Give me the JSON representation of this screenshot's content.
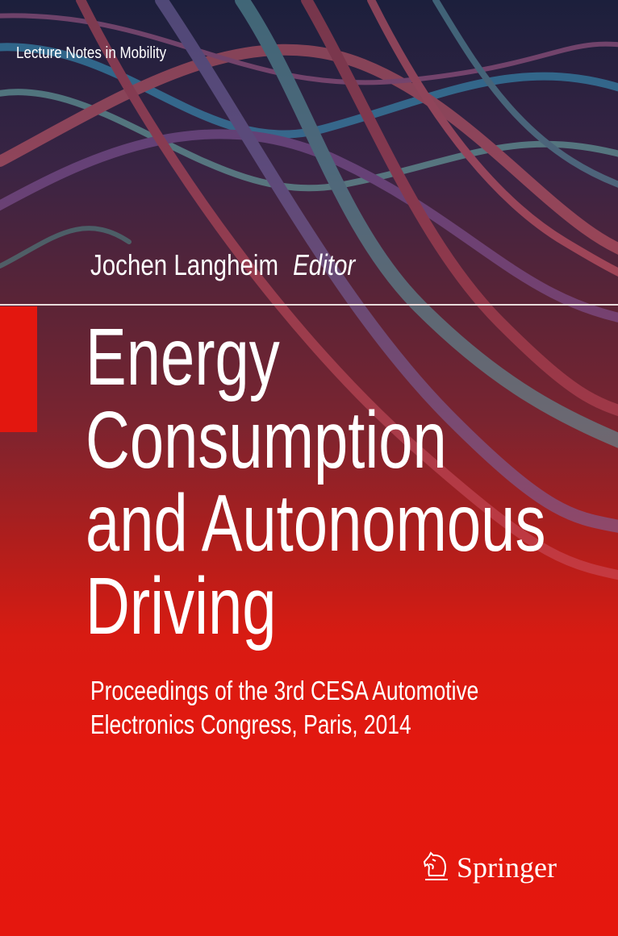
{
  "series": "Lecture Notes in Mobility",
  "author": {
    "name": "Jochen Langheim",
    "role": "Editor"
  },
  "title_lines": [
    "Energy",
    "Consumption",
    "and Autonomous",
    "Driving"
  ],
  "subtitle_lines": [
    "Proceedings of the 3rd CESA Automotive",
    "Electronics Congress, Paris, 2014"
  ],
  "publisher": {
    "name": "Springer",
    "icon": "springer-knight-logo"
  },
  "colors": {
    "accent_red": "#e3170f",
    "top_dark": "#1c1f3c",
    "text": "#ffffff"
  }
}
